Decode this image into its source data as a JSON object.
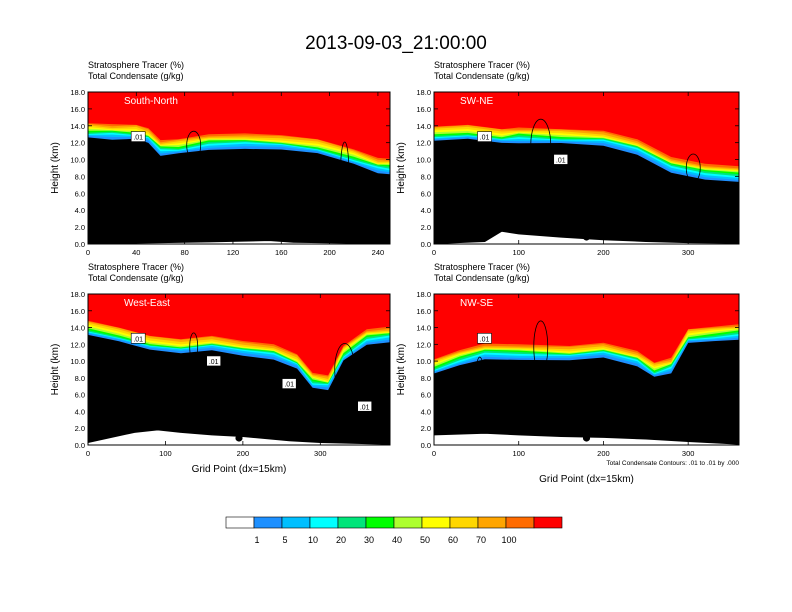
{
  "title": "2013-09-03_21:00:00",
  "chart_data": {
    "type": "heatmap",
    "panels": [
      {
        "name": "South-North",
        "header": [
          "Stratosphere Tracer   (%)",
          "Total Condensate   (g/kg)"
        ],
        "xlabel": "",
        "ylabel": "Height (km)",
        "xlim": [
          0,
          250
        ],
        "xticks": [
          0,
          40,
          80,
          120,
          160,
          200,
          240
        ],
        "ylim": [
          0,
          18
        ],
        "yticks": [
          "0.0",
          "2.0",
          "4.0",
          "6.0",
          "8.0",
          "10.0",
          "12.0",
          "14.0",
          "16.0",
          "18.0"
        ],
        "tracer_top_km": [
          [
            0,
            14.5
          ],
          [
            20,
            14.4
          ],
          [
            40,
            14.3
          ],
          [
            50,
            13.9
          ],
          [
            60,
            12.5
          ],
          [
            75,
            12.6
          ],
          [
            100,
            13.2
          ],
          [
            130,
            13.3
          ],
          [
            160,
            13.1
          ],
          [
            190,
            12.6
          ],
          [
            220,
            11.4
          ],
          [
            240,
            10.4
          ],
          [
            250,
            10.3
          ]
        ],
        "terrain_km": [
          [
            0,
            0.05
          ],
          [
            60,
            0.15
          ],
          [
            100,
            0.25
          ],
          [
            150,
            0.4
          ],
          [
            170,
            0.2
          ],
          [
            250,
            0.05
          ]
        ],
        "marker_x": 125,
        "contour_labels": [
          ".01"
        ]
      },
      {
        "name": "SW-NE",
        "header": [
          "Stratosphere Tracer   (%)",
          "Total Condensate   (g/kg)"
        ],
        "xlabel": "",
        "ylabel": "Height (km)",
        "xlim": [
          0,
          360
        ],
        "xticks": [
          0,
          100,
          200,
          300
        ],
        "ylim": [
          0,
          18
        ],
        "yticks": [
          "0.0",
          "2.0",
          "4.0",
          "6.0",
          "8.0",
          "10.0",
          "12.0",
          "14.0",
          "16.0",
          "18.0"
        ],
        "tracer_top_km": [
          [
            0,
            14.1
          ],
          [
            40,
            14.3
          ],
          [
            80,
            13.8
          ],
          [
            100,
            14.0
          ],
          [
            150,
            13.8
          ],
          [
            200,
            13.6
          ],
          [
            240,
            12.6
          ],
          [
            280,
            10.5
          ],
          [
            320,
            9.7
          ],
          [
            360,
            9.4
          ]
        ],
        "terrain_km": [
          [
            0,
            0.05
          ],
          [
            60,
            0.3
          ],
          [
            80,
            1.5
          ],
          [
            100,
            1.2
          ],
          [
            150,
            0.8
          ],
          [
            200,
            0.5
          ],
          [
            250,
            0.3
          ],
          [
            300,
            0.15
          ],
          [
            360,
            0.1
          ]
        ],
        "marker_x": 180,
        "contour_labels": [
          ".01",
          ".01"
        ]
      },
      {
        "name": "West-East",
        "header": [
          "Stratosphere Tracer   (%)",
          "Total Condensate   (g/kg)"
        ],
        "xlabel": "Grid Point (dx=15km)",
        "ylabel": "Height (km)",
        "xlim": [
          0,
          390
        ],
        "xticks": [
          0,
          100,
          200,
          300
        ],
        "ylim": [
          0,
          18
        ],
        "yticks": [
          "0.0",
          "2.0",
          "4.0",
          "6.0",
          "8.0",
          "10.0",
          "12.0",
          "14.0",
          "16.0",
          "18.0"
        ],
        "tracer_top_km": [
          [
            0,
            15.0
          ],
          [
            40,
            14.2
          ],
          [
            80,
            13.2
          ],
          [
            120,
            12.8
          ],
          [
            160,
            13.2
          ],
          [
            200,
            12.6
          ],
          [
            240,
            12.2
          ],
          [
            270,
            11.0
          ],
          [
            290,
            8.8
          ],
          [
            310,
            8.5
          ],
          [
            330,
            12.0
          ],
          [
            360,
            14.0
          ],
          [
            390,
            14.3
          ]
        ],
        "terrain_km": [
          [
            0,
            0.3
          ],
          [
            60,
            1.5
          ],
          [
            90,
            1.8
          ],
          [
            120,
            1.5
          ],
          [
            160,
            1.2
          ],
          [
            200,
            1.0
          ],
          [
            260,
            0.5
          ],
          [
            300,
            0.3
          ],
          [
            340,
            0.2
          ],
          [
            390,
            0.1
          ]
        ],
        "marker_x": 195,
        "contour_labels": [
          ".01",
          ".01",
          ".01",
          ".01"
        ]
      },
      {
        "name": "NW-SE",
        "header": [
          "Stratosphere Tracer   (%)",
          "Total Condensate   (g/kg)"
        ],
        "xlabel": "Grid Point (dx=15km)",
        "ylabel": "Height (km)",
        "xlim": [
          0,
          360
        ],
        "xticks": [
          0,
          100,
          200,
          300
        ],
        "ylim": [
          0,
          18
        ],
        "yticks": [
          "0.0",
          "2.0",
          "4.0",
          "6.0",
          "8.0",
          "10.0",
          "12.0",
          "14.0",
          "16.0",
          "18.0"
        ],
        "tracer_top_km": [
          [
            0,
            10.4
          ],
          [
            30,
            11.5
          ],
          [
            60,
            12.3
          ],
          [
            100,
            12.2
          ],
          [
            160,
            12.0
          ],
          [
            200,
            12.4
          ],
          [
            240,
            11.4
          ],
          [
            260,
            10.0
          ],
          [
            280,
            10.6
          ],
          [
            300,
            14.0
          ],
          [
            330,
            14.3
          ],
          [
            360,
            14.6
          ]
        ],
        "terrain_km": [
          [
            0,
            1.2
          ],
          [
            60,
            1.4
          ],
          [
            100,
            1.2
          ],
          [
            150,
            1.0
          ],
          [
            200,
            0.9
          ],
          [
            250,
            0.7
          ],
          [
            300,
            0.4
          ],
          [
            360,
            0.1
          ]
        ],
        "marker_x": 180,
        "contour_labels": [
          ".01"
        ],
        "footnote": "Total Condensate Contours: .01 to .01 by .000"
      }
    ],
    "colorbar": {
      "colors": [
        "#ffffff",
        "#1e90ff",
        "#00bfff",
        "#00ffff",
        "#00e57a",
        "#00ff00",
        "#adff2f",
        "#ffff00",
        "#ffd700",
        "#ffa500",
        "#ff6b00",
        "#ff0000"
      ],
      "labels": [
        "1",
        "5",
        "10",
        "20",
        "30",
        "40",
        "50",
        "60",
        "70",
        "100"
      ]
    }
  }
}
